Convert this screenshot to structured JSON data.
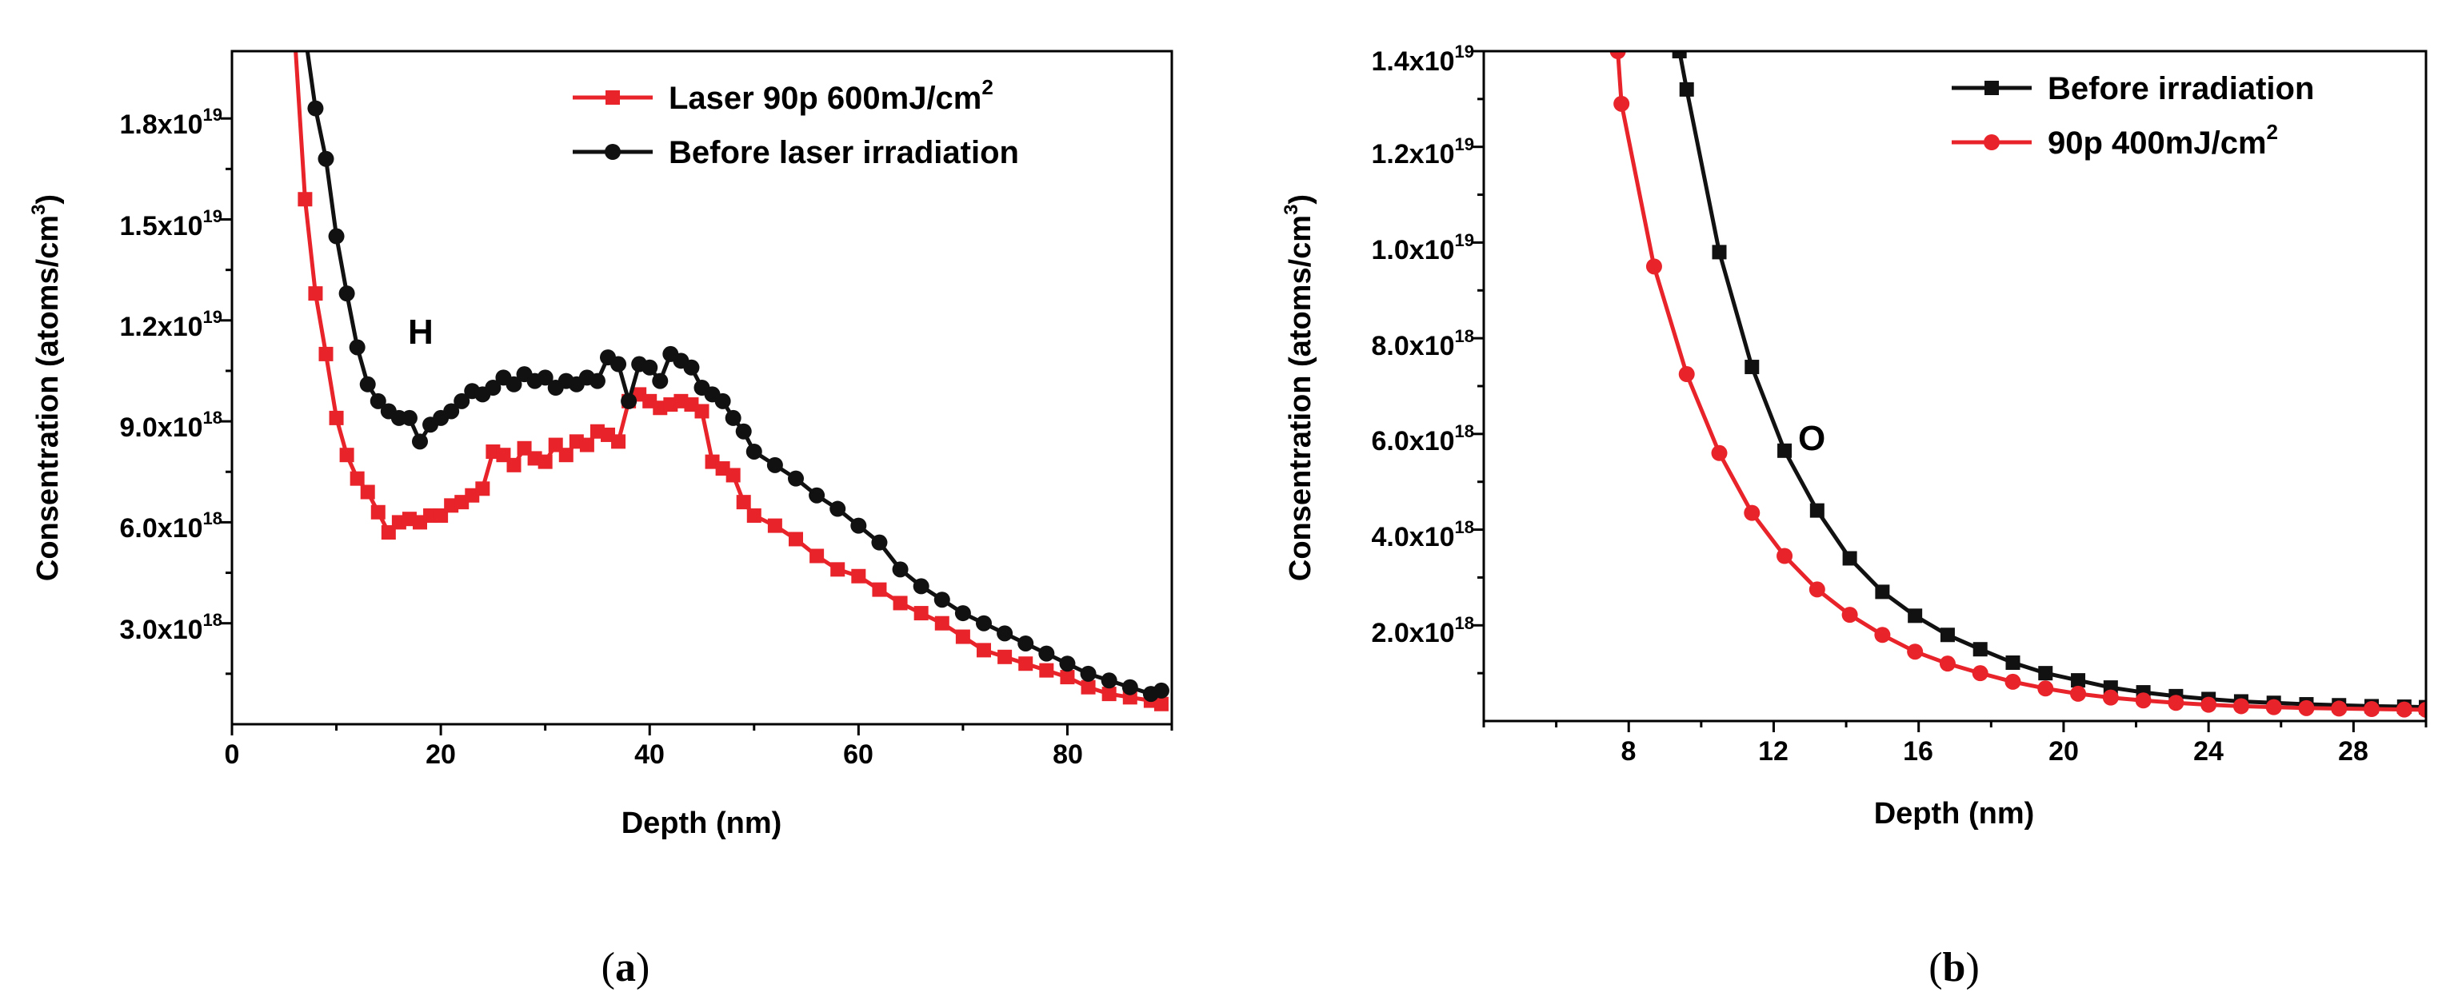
{
  "chart_data": [
    {
      "type": "line",
      "panel_caption_open": "(",
      "panel_caption_letter": "a",
      "panel_caption_close": ")",
      "annotation": "H",
      "xlabel": "Depth (nm)",
      "ylabel_main": "Consentration (atoms/cm",
      "ylabel_sup": "3",
      "ylabel_close": ")",
      "xlim": [
        0,
        90
      ],
      "ylim": [
        0,
        2e+19
      ],
      "xticks": [
        0,
        20,
        40,
        60,
        80
      ],
      "xtick_labels": [
        "0",
        "20",
        "40",
        "60",
        "80"
      ],
      "yticks": [
        3e+18,
        6e+18,
        9e+18,
        1.2e+19,
        1.5e+19,
        1.8e+19
      ],
      "ytick_mantissas": [
        "3.0x10",
        "6.0x10",
        "9.0x10",
        "1.2x10",
        "1.5x10",
        "1.8x10"
      ],
      "ytick_exponents": [
        "18",
        "18",
        "18",
        "19",
        "19",
        "19"
      ],
      "legend_position": "top-right",
      "series": [
        {
          "name_main": "Laser 90p 600mJ/cm",
          "name_sup": "2",
          "color": "#e8232a",
          "marker": "square",
          "x": [
            6,
            7,
            8,
            9,
            10,
            11,
            12,
            13,
            14,
            15,
            16,
            17,
            18,
            19,
            20,
            21,
            22,
            23,
            24,
            25,
            26,
            27,
            28,
            29,
            30,
            31,
            32,
            33,
            34,
            35,
            36,
            37,
            38,
            39,
            40,
            41,
            42,
            43,
            44,
            45,
            46,
            47,
            48,
            49,
            50,
            52,
            54,
            56,
            58,
            60,
            62,
            64,
            66,
            68,
            70,
            72,
            74,
            76,
            78,
            80,
            82,
            84,
            86,
            88,
            89
          ],
          "y": [
            2.05e+19,
            1.56e+19,
            1.28e+19,
            1.1e+19,
            9.1e+18,
            8e+18,
            7.3e+18,
            6.9e+18,
            6.3e+18,
            5.7e+18,
            6e+18,
            6.1e+18,
            6e+18,
            6.2e+18,
            6.2e+18,
            6.5e+18,
            6.6e+18,
            6.8e+18,
            7e+18,
            8.1e+18,
            8e+18,
            7.7e+18,
            8.2e+18,
            7.9e+18,
            7.8e+18,
            8.3e+18,
            8e+18,
            8.4e+18,
            8.3e+18,
            8.7e+18,
            8.6e+18,
            8.4e+18,
            9.6e+18,
            9.8e+18,
            9.6e+18,
            9.4e+18,
            9.5e+18,
            9.6e+18,
            9.5e+18,
            9.3e+18,
            7.8e+18,
            7.6e+18,
            7.4e+18,
            6.6e+18,
            6.2e+18,
            5.9e+18,
            5.5e+18,
            5e+18,
            4.6e+18,
            4.4e+18,
            4e+18,
            3.6e+18,
            3.3e+18,
            3e+18,
            2.6e+18,
            2.2e+18,
            2e+18,
            1.8e+18,
            1.6e+18,
            1.4e+18,
            1.1e+18,
            9e+17,
            8e+17,
            7e+17,
            6e+17
          ]
        },
        {
          "name": "Before laser irradiation",
          "color": "#111111",
          "marker": "circle",
          "x": [
            7,
            8,
            9,
            10,
            11,
            12,
            13,
            14,
            15,
            16,
            17,
            18,
            19,
            20,
            21,
            22,
            23,
            24,
            25,
            26,
            27,
            28,
            29,
            30,
            31,
            32,
            33,
            34,
            35,
            36,
            37,
            38,
            39,
            40,
            41,
            42,
            43,
            44,
            45,
            46,
            47,
            48,
            49,
            50,
            52,
            54,
            56,
            58,
            60,
            62,
            64,
            66,
            68,
            70,
            72,
            74,
            76,
            78,
            80,
            82,
            84,
            86,
            88,
            89
          ],
          "y": [
            2.05e+19,
            1.83e+19,
            1.68e+19,
            1.45e+19,
            1.28e+19,
            1.12e+19,
            1.01e+19,
            9.6e+18,
            9.3e+18,
            9.1e+18,
            9.1e+18,
            8.4e+18,
            8.9e+18,
            9.1e+18,
            9.3e+18,
            9.6e+18,
            9.9e+18,
            9.8e+18,
            1e+19,
            1.03e+19,
            1.01e+19,
            1.04e+19,
            1.02e+19,
            1.03e+19,
            1e+19,
            1.02e+19,
            1.01e+19,
            1.03e+19,
            1.02e+19,
            1.09e+19,
            1.07e+19,
            9.6e+18,
            1.07e+19,
            1.06e+19,
            1.02e+19,
            1.1e+19,
            1.08e+19,
            1.06e+19,
            1e+19,
            9.8e+18,
            9.6e+18,
            9.1e+18,
            8.7e+18,
            8.1e+18,
            7.7e+18,
            7.3e+18,
            6.8e+18,
            6.4e+18,
            5.9e+18,
            5.4e+18,
            4.6e+18,
            4.1e+18,
            3.7e+18,
            3.3e+18,
            3e+18,
            2.7e+18,
            2.4e+18,
            2.1e+18,
            1.8e+18,
            1.5e+18,
            1.3e+18,
            1.1e+18,
            9e+17,
            1e+18
          ]
        }
      ]
    },
    {
      "type": "line",
      "panel_caption_open": "(",
      "panel_caption_letter": "b",
      "panel_caption_close": ")",
      "annotation": "O",
      "xlabel": "Depth (nm)",
      "ylabel_main": "Consentration (atoms/cm",
      "ylabel_sup": "3",
      "ylabel_close": ")",
      "xlim": [
        4,
        30
      ],
      "ylim": [
        0,
        1.4e+19
      ],
      "xticks": [
        8,
        12,
        16,
        20,
        24,
        28
      ],
      "xtick_labels": [
        "8",
        "12",
        "16",
        "20",
        "24",
        "28"
      ],
      "yticks": [
        2e+18,
        4e+18,
        6e+18,
        8e+18,
        1e+19,
        1.2e+19,
        1.4e+19
      ],
      "ytick_mantissas": [
        "2.0x10",
        "4.0x10",
        "6.0x10",
        "8.0x10",
        "1.0x10",
        "1.2x10",
        "1.4x10"
      ],
      "ytick_exponents": [
        "18",
        "18",
        "18",
        "18",
        "19",
        "19",
        "19"
      ],
      "legend_position": "top-right",
      "series": [
        {
          "name": "Before irradiation",
          "color": "#111111",
          "marker": "square",
          "x": [
            9.4,
            9.6,
            10.5,
            11.4,
            12.3,
            13.2,
            14.1,
            15.0,
            15.9,
            16.8,
            17.7,
            18.6,
            19.5,
            20.4,
            21.3,
            22.2,
            23.1,
            24.0,
            24.9,
            25.8,
            26.7,
            27.6,
            28.5,
            29.4,
            30.0
          ],
          "y": [
            1.4e+19,
            1.32e+19,
            9.8e+18,
            7.4e+18,
            5.65e+18,
            4.4e+18,
            3.4e+18,
            2.7e+18,
            2.2e+18,
            1.8e+18,
            1.5e+18,
            1.22e+18,
            1e+18,
            8.5e+17,
            7e+17,
            6e+17,
            5.2e+17,
            4.6e+17,
            4.1e+17,
            3.8e+17,
            3.5e+17,
            3.3e+17,
            3.1e+17,
            3e+17,
            2.9e+17
          ]
        },
        {
          "name_main": "90p 400mJ/cm",
          "name_sup": "2",
          "color": "#e8232a",
          "marker": "circle",
          "x": [
            7.7,
            7.8,
            8.7,
            9.6,
            10.5,
            11.4,
            12.3,
            13.2,
            14.1,
            15.0,
            15.9,
            16.8,
            17.7,
            18.6,
            19.5,
            20.4,
            21.3,
            22.2,
            23.1,
            24.0,
            24.9,
            25.8,
            26.7,
            27.6,
            28.5,
            29.4,
            30.0
          ],
          "y": [
            1.4e+19,
            1.29e+19,
            9.5e+18,
            7.25e+18,
            5.6e+18,
            4.35e+18,
            3.45e+18,
            2.75e+18,
            2.22e+18,
            1.8e+18,
            1.45e+18,
            1.2e+18,
            1e+18,
            8.2e+17,
            6.8e+17,
            5.7e+17,
            4.9e+17,
            4.3e+17,
            3.8e+17,
            3.4e+17,
            3.1e+17,
            2.9e+17,
            2.7e+17,
            2.6e+17,
            2.5e+17,
            2.4e+17,
            2.35e+17
          ]
        }
      ]
    }
  ]
}
